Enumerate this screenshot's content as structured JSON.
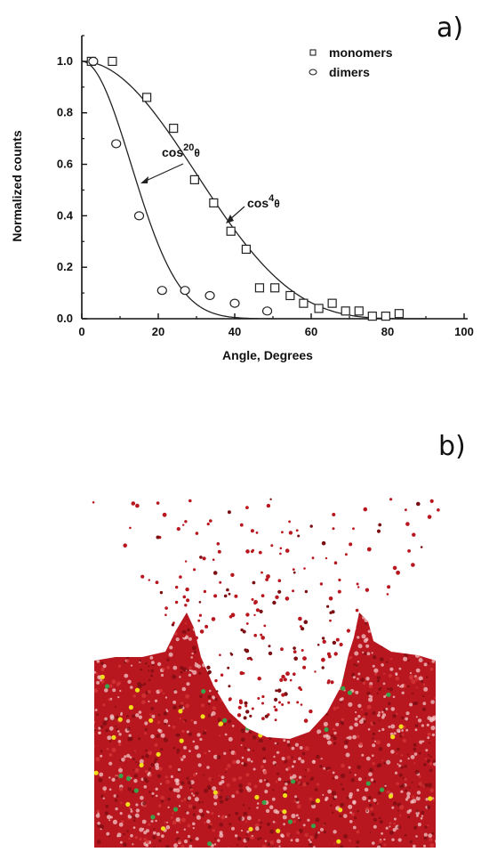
{
  "panels": {
    "a_label": "a)",
    "b_label": "b)"
  },
  "chart_data": {
    "type": "scatter",
    "title": "",
    "xlabel": "Angle, Degrees",
    "ylabel": "Normalized counts",
    "xlim": [
      0,
      100
    ],
    "ylim": [
      0,
      1.1
    ],
    "xticks": [
      "0",
      "20",
      "40",
      "60",
      "80",
      "100"
    ],
    "yticks": [
      "0.0",
      "0.2",
      "0.4",
      "0.6",
      "0.8",
      "1.0"
    ],
    "legend_position": "top-right",
    "series": [
      {
        "name": "monomers",
        "marker": "square",
        "x": [
          2.5,
          8,
          17,
          24,
          29.5,
          34.5,
          39,
          43,
          46.5,
          50.5,
          54.5,
          58,
          62,
          65.5,
          69,
          72.5,
          76,
          79.5,
          83
        ],
        "y": [
          1.0,
          1.0,
          0.86,
          0.74,
          0.54,
          0.45,
          0.34,
          0.27,
          0.12,
          0.12,
          0.09,
          0.06,
          0.04,
          0.06,
          0.03,
          0.03,
          0.01,
          0.01,
          0.02
        ]
      },
      {
        "name": "dimers",
        "marker": "circle",
        "x": [
          3,
          9,
          15,
          21,
          27,
          33.5,
          40,
          48.5
        ],
        "y": [
          1.0,
          0.68,
          0.4,
          0.11,
          0.11,
          0.09,
          0.06,
          0.03
        ]
      }
    ],
    "curves": [
      {
        "label_base": "cos",
        "label_exp": "4",
        "label_sym": "θ",
        "exponent": 4
      },
      {
        "label_base": "cos",
        "label_exp": "20",
        "label_sym": "θ",
        "exponent": 20
      }
    ]
  },
  "simulation_image": {
    "description_colors": {
      "particles": "#b8171f",
      "dark": "#7a0e12",
      "light": "#f3c7c7",
      "yellow_atoms": "#f1dc19",
      "green_atoms": "#3aa24b"
    }
  }
}
